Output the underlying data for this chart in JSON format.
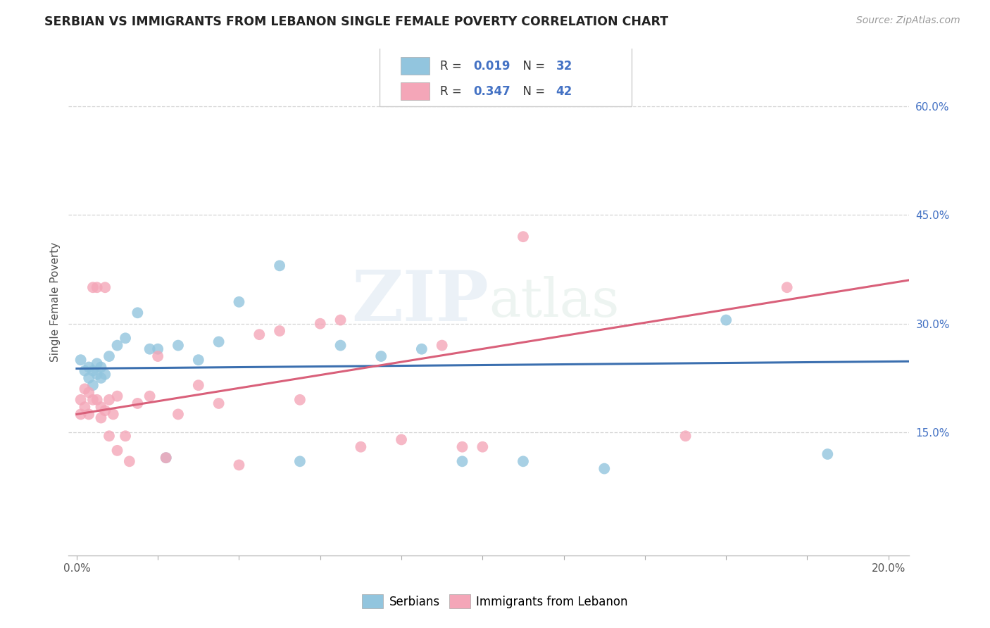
{
  "title": "SERBIAN VS IMMIGRANTS FROM LEBANON SINGLE FEMALE POVERTY CORRELATION CHART",
  "source": "Source: ZipAtlas.com",
  "ylabel": "Single Female Poverty",
  "watermark": "ZIPatlas",
  "xlim": [
    -0.002,
    0.205
  ],
  "ylim": [
    -0.02,
    0.68
  ],
  "xtick_positions": [
    0.0,
    0.02,
    0.04,
    0.06,
    0.08,
    0.1,
    0.12,
    0.14,
    0.16,
    0.18,
    0.2
  ],
  "xtick_labels": [
    "0.0%",
    "",
    "",
    "",
    "",
    "",
    "",
    "",
    "",
    "",
    "20.0%"
  ],
  "ytick_positions_right": [
    0.15,
    0.3,
    0.45,
    0.6
  ],
  "ytick_labels_right": [
    "15.0%",
    "30.0%",
    "45.0%",
    "60.0%"
  ],
  "serbian_color": "#92c5de",
  "lebanon_color": "#f4a6b8",
  "serbian_line_color": "#3b6faf",
  "lebanon_line_color": "#d9607a",
  "bg_color": "#ffffff",
  "grid_color": "#d0d0d0",
  "title_color": "#222222",
  "source_color": "#999999",
  "label_color": "#4472c4",
  "serbian_x": [
    0.001,
    0.002,
    0.003,
    0.003,
    0.004,
    0.004,
    0.005,
    0.005,
    0.006,
    0.006,
    0.007,
    0.008,
    0.01,
    0.012,
    0.015,
    0.018,
    0.02,
    0.022,
    0.025,
    0.03,
    0.035,
    0.04,
    0.05,
    0.055,
    0.065,
    0.075,
    0.085,
    0.095,
    0.11,
    0.13,
    0.16,
    0.185
  ],
  "serbian_y": [
    0.25,
    0.235,
    0.24,
    0.225,
    0.235,
    0.215,
    0.245,
    0.23,
    0.24,
    0.225,
    0.23,
    0.255,
    0.27,
    0.28,
    0.315,
    0.265,
    0.265,
    0.115,
    0.27,
    0.25,
    0.275,
    0.33,
    0.38,
    0.11,
    0.27,
    0.255,
    0.265,
    0.11,
    0.11,
    0.1,
    0.305,
    0.12
  ],
  "lebanon_x": [
    0.001,
    0.001,
    0.002,
    0.002,
    0.003,
    0.003,
    0.004,
    0.004,
    0.005,
    0.005,
    0.006,
    0.006,
    0.007,
    0.007,
    0.008,
    0.008,
    0.009,
    0.01,
    0.01,
    0.012,
    0.013,
    0.015,
    0.018,
    0.02,
    0.022,
    0.025,
    0.03,
    0.035,
    0.04,
    0.045,
    0.05,
    0.055,
    0.06,
    0.065,
    0.07,
    0.08,
    0.09,
    0.095,
    0.1,
    0.11,
    0.15,
    0.175
  ],
  "lebanon_y": [
    0.195,
    0.175,
    0.21,
    0.185,
    0.205,
    0.175,
    0.35,
    0.195,
    0.35,
    0.195,
    0.185,
    0.17,
    0.35,
    0.18,
    0.195,
    0.145,
    0.175,
    0.2,
    0.125,
    0.145,
    0.11,
    0.19,
    0.2,
    0.255,
    0.115,
    0.175,
    0.215,
    0.19,
    0.105,
    0.285,
    0.29,
    0.195,
    0.3,
    0.305,
    0.13,
    0.14,
    0.27,
    0.13,
    0.13,
    0.42,
    0.145,
    0.35
  ],
  "serbian_line_x": [
    0.0,
    0.205
  ],
  "serbian_line_y": [
    0.238,
    0.248
  ],
  "lebanon_line_x": [
    0.0,
    0.205
  ],
  "lebanon_line_y": [
    0.175,
    0.36
  ]
}
